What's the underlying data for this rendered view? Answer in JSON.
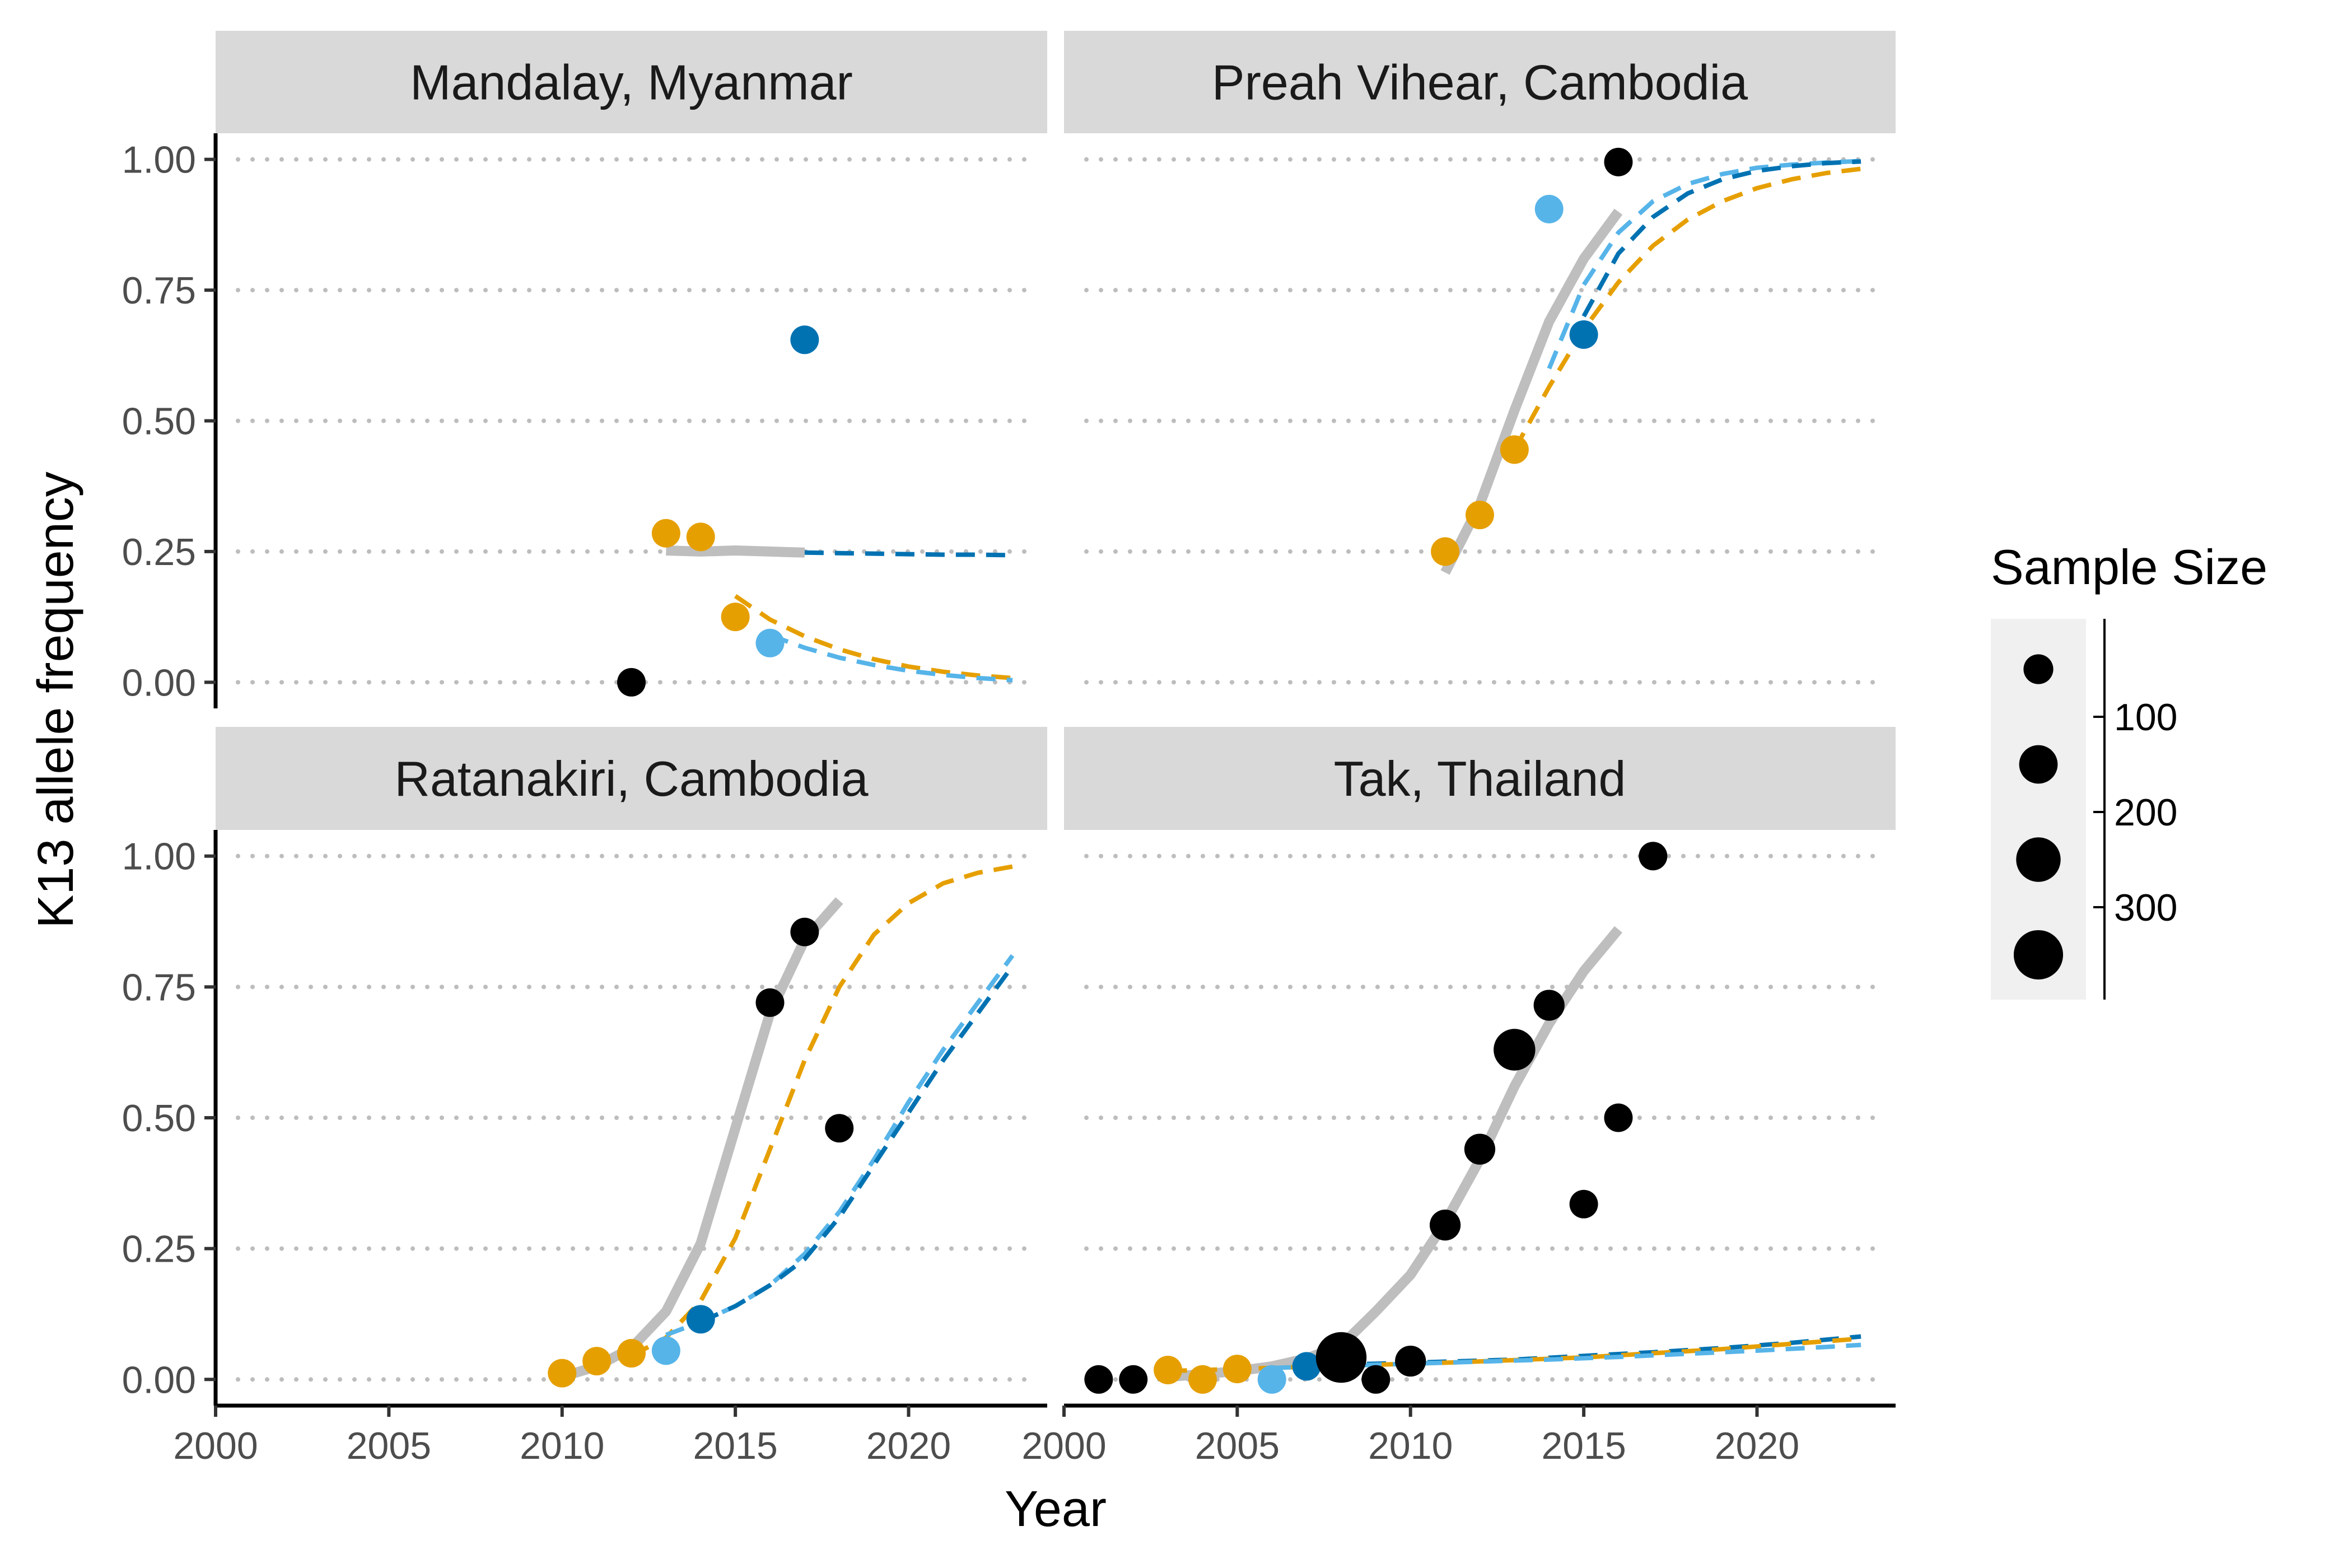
{
  "chart_data": {
    "type": "scatter",
    "xlabel": "Year",
    "ylabel": "K13 allele frequency",
    "xlim": [
      2000,
      2024
    ],
    "ylim": [
      -0.05,
      1.05
    ],
    "x_ticks": [
      2000,
      2005,
      2010,
      2015,
      2020
    ],
    "x_tick_labels": [
      "2000",
      "2005",
      "2010",
      "2015",
      "2020"
    ],
    "y_ticks": [
      0,
      0.25,
      0.5,
      0.75,
      1.0
    ],
    "y_tick_labels": [
      "0.00",
      "0.25",
      "0.50",
      "0.75",
      "1.00"
    ],
    "grid": "horizontal-dotted",
    "colors": {
      "black": "#000000",
      "orange": "#E69F00",
      "sky": "#56B4E9",
      "blue": "#0072B2",
      "fit_gray": "#BEBEBE",
      "strip_bg": "#D9D9D9",
      "legend_bg": "#F0F0F0"
    },
    "legend": {
      "title": "Sample Size",
      "placement": "right",
      "breaks": [
        50,
        150,
        250,
        350
      ],
      "labels": [
        "100",
        "200",
        "300"
      ]
    },
    "panels": [
      {
        "title": "Mandalay, Myanmar",
        "points": [
          {
            "x": 2012,
            "y": 0.0,
            "color": "black",
            "n": 40
          },
          {
            "x": 2013,
            "y": 0.285,
            "color": "orange",
            "n": 40
          },
          {
            "x": 2014,
            "y": 0.278,
            "color": "orange",
            "n": 40
          },
          {
            "x": 2015,
            "y": 0.125,
            "color": "orange",
            "n": 40
          },
          {
            "x": 2016,
            "y": 0.075,
            "color": "sky",
            "n": 40
          },
          {
            "x": 2017,
            "y": 0.655,
            "color": "blue",
            "n": 40
          }
        ],
        "lines": [
          {
            "style": "solid",
            "color": "fit_gray",
            "x": [
              2013,
              2014,
              2015,
              2016,
              2017
            ],
            "y": [
              0.252,
              0.25,
              0.252,
              0.25,
              0.248
            ]
          },
          {
            "style": "dashed",
            "color": "blue",
            "x": [
              2017,
              2018,
              2019,
              2020,
              2021,
              2022,
              2023
            ],
            "y": [
              0.248,
              0.247,
              0.246,
              0.245,
              0.244,
              0.244,
              0.243
            ]
          },
          {
            "style": "dashed",
            "color": "orange",
            "x": [
              2015,
              2016,
              2017,
              2018,
              2019,
              2020,
              2021,
              2022,
              2023
            ],
            "y": [
              0.165,
              0.12,
              0.088,
              0.063,
              0.044,
              0.03,
              0.02,
              0.013,
              0.008
            ]
          },
          {
            "style": "dashed",
            "color": "sky",
            "x": [
              2016,
              2017,
              2018,
              2019,
              2020,
              2021,
              2022,
              2023
            ],
            "y": [
              0.09,
              0.066,
              0.047,
              0.033,
              0.022,
              0.014,
              0.008,
              0.004
            ]
          }
        ]
      },
      {
        "title": "Preah Vihear, Cambodia",
        "points": [
          {
            "x": 2011,
            "y": 0.25,
            "color": "orange",
            "n": 40
          },
          {
            "x": 2012,
            "y": 0.32,
            "color": "orange",
            "n": 40
          },
          {
            "x": 2013,
            "y": 0.445,
            "color": "orange",
            "n": 40
          },
          {
            "x": 2014,
            "y": 0.905,
            "color": "sky",
            "n": 40
          },
          {
            "x": 2015,
            "y": 0.665,
            "color": "blue",
            "n": 40
          },
          {
            "x": 2016,
            "y": 0.995,
            "color": "black",
            "n": 40
          }
        ],
        "lines": [
          {
            "style": "solid",
            "color": "fit_gray",
            "x": [
              2011,
              2012,
              2013,
              2014,
              2015,
              2016
            ],
            "y": [
              0.21,
              0.34,
              0.52,
              0.69,
              0.81,
              0.9
            ]
          },
          {
            "style": "dashed",
            "color": "orange",
            "x": [
              2013,
              2014,
              2015,
              2016,
              2017,
              2018,
              2019,
              2020,
              2021,
              2022,
              2023
            ],
            "y": [
              0.445,
              0.565,
              0.675,
              0.765,
              0.835,
              0.885,
              0.92,
              0.945,
              0.962,
              0.974,
              0.982
            ]
          },
          {
            "style": "dashed",
            "color": "sky",
            "x": [
              2014,
              2015,
              2016,
              2017,
              2018,
              2019,
              2020,
              2021,
              2022,
              2023
            ],
            "y": [
              0.6,
              0.76,
              0.86,
              0.92,
              0.953,
              0.972,
              0.984,
              0.99,
              0.994,
              0.997
            ]
          },
          {
            "style": "dashed",
            "color": "blue",
            "x": [
              2015,
              2016,
              2017,
              2018,
              2019,
              2020,
              2021,
              2022,
              2023
            ],
            "y": [
              0.7,
              0.82,
              0.89,
              0.935,
              0.962,
              0.978,
              0.987,
              0.993,
              0.996
            ]
          }
        ]
      },
      {
        "title": "Ratanakiri, Cambodia",
        "points": [
          {
            "x": 2010,
            "y": 0.012,
            "color": "orange",
            "n": 40
          },
          {
            "x": 2011,
            "y": 0.035,
            "color": "orange",
            "n": 40
          },
          {
            "x": 2012,
            "y": 0.05,
            "color": "orange",
            "n": 40
          },
          {
            "x": 2013,
            "y": 0.055,
            "color": "sky",
            "n": 40
          },
          {
            "x": 2014,
            "y": 0.115,
            "color": "blue",
            "n": 40
          },
          {
            "x": 2016,
            "y": 0.72,
            "color": "black",
            "n": 40
          },
          {
            "x": 2017,
            "y": 0.855,
            "color": "black",
            "n": 40
          },
          {
            "x": 2018,
            "y": 0.48,
            "color": "black",
            "n": 40
          }
        ],
        "lines": [
          {
            "style": "solid",
            "color": "fit_gray",
            "x": [
              2010,
              2011,
              2012,
              2013,
              2014,
              2015,
              2016,
              2017,
              2018
            ],
            "y": [
              0.005,
              0.025,
              0.06,
              0.13,
              0.26,
              0.48,
              0.7,
              0.84,
              0.915
            ]
          },
          {
            "style": "dashed",
            "color": "orange",
            "x": [
              2012,
              2013,
              2014,
              2015,
              2016,
              2017,
              2018,
              2019,
              2020,
              2021,
              2022,
              2023
            ],
            "y": [
              0.045,
              0.08,
              0.15,
              0.27,
              0.44,
              0.61,
              0.75,
              0.85,
              0.91,
              0.948,
              0.968,
              0.98
            ]
          },
          {
            "style": "dashed",
            "color": "sky",
            "x": [
              2013,
              2014,
              2015,
              2016,
              2017,
              2018,
              2019,
              2020,
              2021,
              2022,
              2023
            ],
            "y": [
              0.085,
              0.11,
              0.14,
              0.18,
              0.24,
              0.32,
              0.42,
              0.53,
              0.63,
              0.72,
              0.81
            ]
          },
          {
            "style": "dashed",
            "color": "blue",
            "x": [
              2014,
              2015,
              2016,
              2017,
              2018,
              2019,
              2020,
              2021,
              2022,
              2023
            ],
            "y": [
              0.11,
              0.14,
              0.18,
              0.23,
              0.31,
              0.41,
              0.51,
              0.61,
              0.7,
              0.79
            ]
          }
        ]
      },
      {
        "title": "Tak, Thailand",
        "points": [
          {
            "x": 2001,
            "y": 0.0,
            "color": "black",
            "n": 40
          },
          {
            "x": 2002,
            "y": 0.0,
            "color": "black",
            "n": 40
          },
          {
            "x": 2003,
            "y": 0.018,
            "color": "orange",
            "n": 40
          },
          {
            "x": 2004,
            "y": 0.0,
            "color": "orange",
            "n": 40
          },
          {
            "x": 2005,
            "y": 0.02,
            "color": "orange",
            "n": 40
          },
          {
            "x": 2006,
            "y": 0.0,
            "color": "sky",
            "n": 40
          },
          {
            "x": 2007,
            "y": 0.025,
            "color": "blue",
            "n": 40
          },
          {
            "x": 2008,
            "y": 0.042,
            "color": "black",
            "n": 380
          },
          {
            "x": 2009,
            "y": 0.0,
            "color": "black",
            "n": 40
          },
          {
            "x": 2010,
            "y": 0.035,
            "color": "black",
            "n": 60
          },
          {
            "x": 2011,
            "y": 0.295,
            "color": "black",
            "n": 60
          },
          {
            "x": 2012,
            "y": 0.44,
            "color": "black",
            "n": 60
          },
          {
            "x": 2013,
            "y": 0.63,
            "color": "black",
            "n": 200
          },
          {
            "x": 2014,
            "y": 0.715,
            "color": "black",
            "n": 60
          },
          {
            "x": 2015,
            "y": 0.335,
            "color": "black",
            "n": 40
          },
          {
            "x": 2016,
            "y": 0.5,
            "color": "black",
            "n": 40
          },
          {
            "x": 2017,
            "y": 1.0,
            "color": "black",
            "n": 40
          }
        ],
        "lines": [
          {
            "style": "solid",
            "color": "fit_gray",
            "x": [
              2003,
              2004,
              2005,
              2006,
              2007,
              2008,
              2009,
              2010,
              2011,
              2012,
              2013,
              2014,
              2015,
              2016
            ],
            "y": [
              0.005,
              0.01,
              0.016,
              0.025,
              0.04,
              0.065,
              0.13,
              0.2,
              0.3,
              0.42,
              0.56,
              0.68,
              0.78,
              0.86
            ]
          },
          {
            "style": "dashed",
            "color": "blue",
            "x": [
              2007,
              2009,
              2011,
              2013,
              2015,
              2017,
              2019,
              2021,
              2023
            ],
            "y": [
              0.027,
              0.03,
              0.034,
              0.038,
              0.045,
              0.052,
              0.06,
              0.07,
              0.082
            ]
          },
          {
            "style": "dashed",
            "color": "orange",
            "x": [
              2003,
              2005,
              2007,
              2009,
              2011,
              2013,
              2015,
              2017,
              2019,
              2021,
              2023
            ],
            "y": [
              0.016,
              0.02,
              0.024,
              0.028,
              0.032,
              0.037,
              0.042,
              0.05,
              0.058,
              0.068,
              0.078
            ]
          },
          {
            "style": "dashed",
            "color": "sky",
            "x": [
              2006,
              2008,
              2010,
              2012,
              2014,
              2016,
              2018,
              2020,
              2022,
              2023
            ],
            "y": [
              0.022,
              0.026,
              0.03,
              0.034,
              0.038,
              0.043,
              0.049,
              0.055,
              0.062,
              0.066
            ]
          }
        ]
      }
    ]
  }
}
